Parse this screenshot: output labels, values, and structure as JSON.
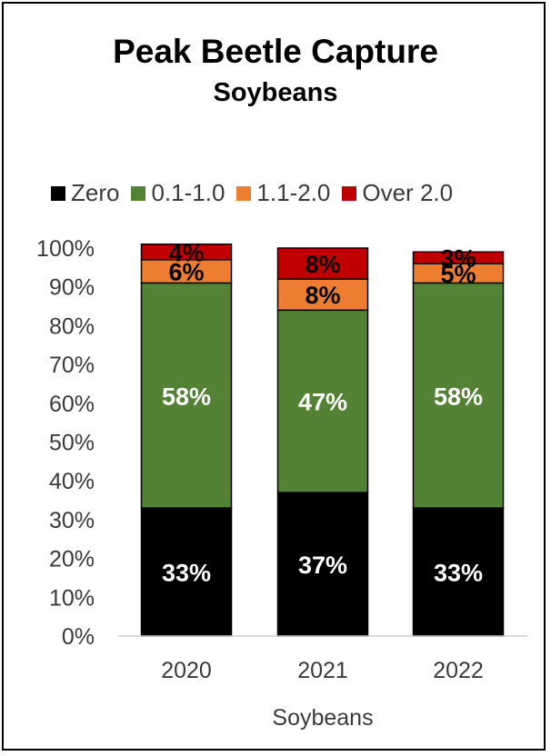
{
  "chart_data": {
    "type": "bar",
    "stacked": true,
    "title": "Peak Beetle Capture",
    "subtitle": "Soybeans",
    "xlabel": "Soybeans",
    "ylabel": "",
    "ylim": [
      0,
      100
    ],
    "yticks": [
      "0%",
      "10%",
      "20%",
      "30%",
      "40%",
      "50%",
      "60%",
      "70%",
      "80%",
      "90%",
      "100%"
    ],
    "categories": [
      "2020",
      "2021",
      "2022"
    ],
    "legend_position": "top",
    "grid": false,
    "series": [
      {
        "name": "Zero",
        "color": "#000000",
        "label_color": "#ffffff",
        "values": [
          33,
          37,
          33
        ],
        "labels": [
          "33%",
          "37%",
          "33%"
        ]
      },
      {
        "name": "0.1-1.0",
        "color": "#548235",
        "label_color": "#ffffff",
        "values": [
          58,
          47,
          58
        ],
        "labels": [
          "58%",
          "47%",
          "58%"
        ]
      },
      {
        "name": "1.1-2.0",
        "color": "#ed7d31",
        "label_color": "#000000",
        "values": [
          6,
          8,
          5
        ],
        "labels": [
          "6%",
          "8%",
          "5%"
        ]
      },
      {
        "name": "Over 2.0",
        "color": "#c00000",
        "label_color": "#000000",
        "values": [
          4,
          8,
          3
        ],
        "labels": [
          "4%",
          "8%",
          "3%"
        ]
      }
    ]
  }
}
